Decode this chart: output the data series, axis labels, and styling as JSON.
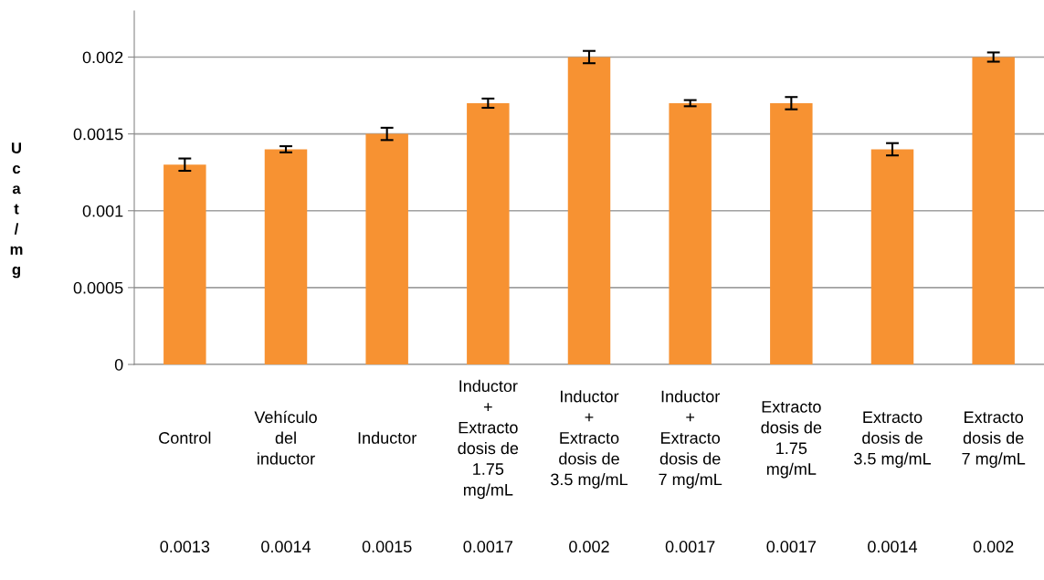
{
  "chart_data": {
    "type": "bar",
    "ylabel": "Ucat/mg",
    "categories": [
      "Control",
      "Vehículo del inductor",
      "Inductor",
      "Inductor + Extracto dosis de 1.75 mg/mL",
      "Inductor + Extracto dosis de 3.5 mg/mL",
      "Inductor + Extracto dosis de 7 mg/mL",
      "Extracto dosis de 1.75 mg/mL",
      "Extracto dosis de 3.5 mg/mL",
      "Extracto dosis de 7 mg/mL"
    ],
    "values": [
      0.0013,
      0.0014,
      0.0015,
      0.0017,
      0.002,
      0.0017,
      0.0017,
      0.0014,
      0.002
    ],
    "errors": [
      4e-05,
      2e-05,
      4e-05,
      3e-05,
      4e-05,
      2e-05,
      4e-05,
      4e-05,
      3e-05
    ],
    "color": "#f79232",
    "ylim": [
      0,
      0.0023
    ],
    "yticks": [
      0,
      0.0005,
      0.001,
      0.0015,
      0.002
    ],
    "grid": "y",
    "data_labels": true
  }
}
